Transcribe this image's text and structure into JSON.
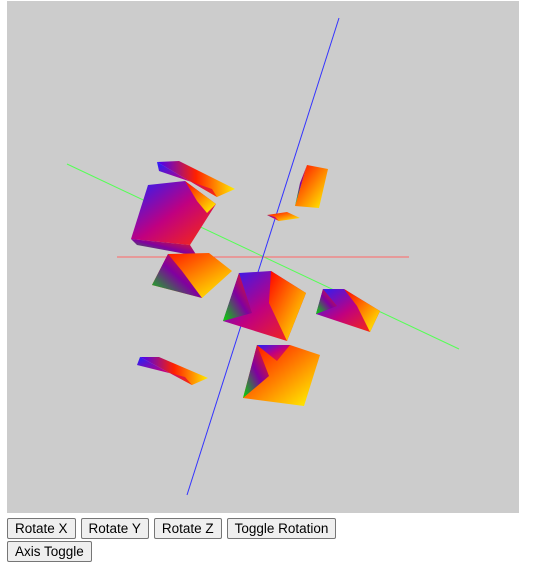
{
  "scene": {
    "background": "#cccccc",
    "axes": {
      "x_color": "#ff6666",
      "y_color": "#3333ff",
      "z_color": "#55ff55"
    },
    "cube_gradient": [
      "#0000ff",
      "#00cc00",
      "#ff0000",
      "#ffff00"
    ]
  },
  "controls": {
    "rotate_x": "Rotate X",
    "rotate_y": "Rotate Y",
    "rotate_z": "Rotate Z",
    "toggle_rotation": "Toggle Rotation",
    "axis_toggle": "Axis Toggle"
  }
}
